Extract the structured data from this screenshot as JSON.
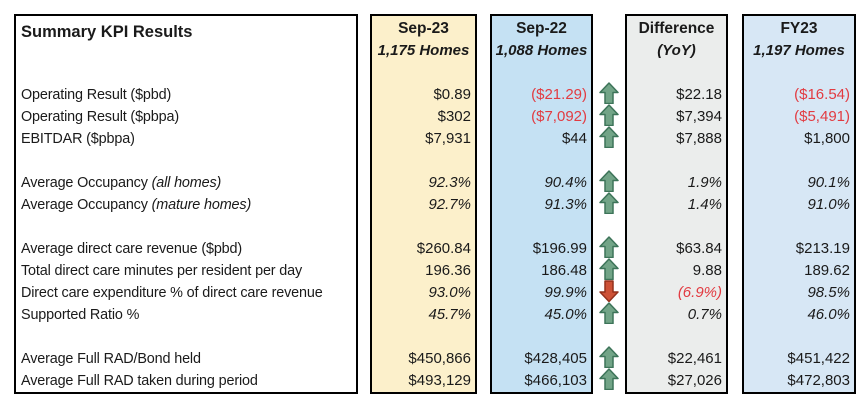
{
  "title": "Summary KPI Results",
  "columns": {
    "sep23": {
      "label": "Sep-23",
      "sublabel": "1,175 Homes",
      "bg": "#fcf0cb"
    },
    "sep22": {
      "label": "Sep-22",
      "sublabel": "1,088 Homes",
      "bg": "#c5e1f3"
    },
    "diff": {
      "label": "Difference",
      "sublabel": "(YoY)",
      "bg": "#ebedec"
    },
    "fy23": {
      "label": "FY23",
      "sublabel": "1,197 Homes",
      "bg": "#d7e7f5"
    }
  },
  "colors": {
    "negative": "#e23b41",
    "border": "#000000",
    "arrow_up_fill": "#72a487",
    "arrow_up_stroke": "#3d7459",
    "arrow_down_fill": "#cd5136",
    "arrow_down_stroke": "#93301b"
  },
  "icons": {
    "up": "trend-up-icon",
    "down": "trend-down-icon"
  },
  "rows": [
    {
      "type": "spacer"
    },
    {
      "type": "data",
      "label": "Operating Result ($pbd)",
      "sep23": "$0.89",
      "sep22": "($21.29)",
      "arrow": "up",
      "diff": "$22.18",
      "fy23": "($16.54)"
    },
    {
      "type": "data",
      "label": "Operating Result ($pbpa)",
      "sep23": "$302",
      "sep22": "($7,092)",
      "arrow": "up",
      "diff": "$7,394",
      "fy23": "($5,491)"
    },
    {
      "type": "data",
      "label": "EBITDAR ($pbpa)",
      "sep23": "$7,931",
      "sep22": "$44",
      "arrow": "up",
      "diff": "$7,888",
      "fy23": "$1,800"
    },
    {
      "type": "spacer"
    },
    {
      "type": "data",
      "label": "Average Occupancy",
      "note": "(all homes)",
      "italic": true,
      "sep23": "92.3%",
      "sep22": "90.4%",
      "arrow": "up",
      "diff": "1.9%",
      "fy23": "90.1%"
    },
    {
      "type": "data",
      "label": "Average Occupancy",
      "note": "(mature homes)",
      "italic": true,
      "sep23": "92.7%",
      "sep22": "91.3%",
      "arrow": "up",
      "diff": "1.4%",
      "fy23": "91.0%"
    },
    {
      "type": "spacer"
    },
    {
      "type": "data",
      "label": "Average direct care revenue ($pbd)",
      "sep23": "$260.84",
      "sep22": "$196.99",
      "arrow": "up",
      "diff": "$63.84",
      "fy23": "$213.19"
    },
    {
      "type": "data",
      "label": "Total direct care minutes per resident per day",
      "sep23": "196.36",
      "sep22": "186.48",
      "arrow": "up",
      "diff": "9.88",
      "fy23": "189.62"
    },
    {
      "type": "data",
      "label": "Direct care expenditure % of direct care revenue",
      "italic": true,
      "sep23": "93.0%",
      "sep22": "99.9%",
      "arrow": "down",
      "diff": "(6.9%)",
      "fy23": "98.5%"
    },
    {
      "type": "data",
      "label": "Supported Ratio %",
      "italic": true,
      "sep23": "45.7%",
      "sep22": "45.0%",
      "arrow": "up",
      "diff": "0.7%",
      "fy23": "46.0%"
    },
    {
      "type": "spacer"
    },
    {
      "type": "data",
      "label": "Average Full RAD/Bond held",
      "sep23": "$450,866",
      "sep22": "$428,405",
      "arrow": "up",
      "diff": "$22,461",
      "fy23": "$451,422"
    },
    {
      "type": "data",
      "label": "Average Full RAD taken during period",
      "sep23": "$493,129",
      "sep22": "$466,103",
      "arrow": "up",
      "diff": "$27,026",
      "fy23": "$472,803"
    }
  ]
}
